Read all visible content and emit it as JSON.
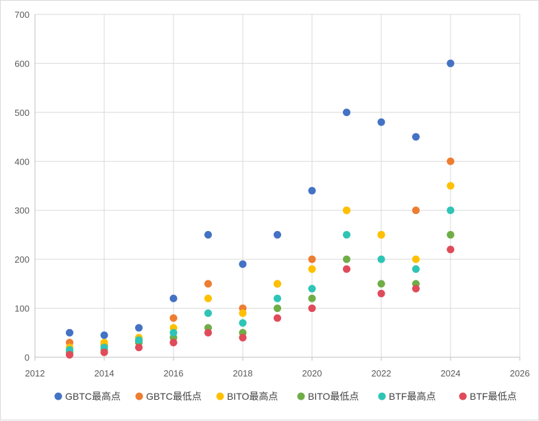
{
  "chart_data": {
    "type": "scatter",
    "title": "",
    "xlabel": "",
    "ylabel": "",
    "xlim": [
      2012,
      2026
    ],
    "ylim": [
      0,
      700
    ],
    "x_ticks": [
      2012,
      2014,
      2016,
      2018,
      2020,
      2022,
      2024,
      2026
    ],
    "y_ticks": [
      0,
      100,
      200,
      300,
      400,
      500,
      600,
      700
    ],
    "x_tick_labels": [
      "2012",
      "2014",
      "2016",
      "2018",
      "2020",
      "2022",
      "2024",
      "2026"
    ],
    "y_tick_labels": [
      "0",
      "100",
      "200",
      "300",
      "400",
      "500",
      "600",
      "700"
    ],
    "grid": true,
    "legend_position": "bottom",
    "x": [
      2013,
      2014,
      2015,
      2016,
      2017,
      2018,
      2019,
      2020,
      2021,
      2022,
      2023,
      2024
    ],
    "series": [
      {
        "name": "GBTC最高点",
        "color": "#4472C4",
        "values": [
          50,
          45,
          60,
          120,
          250,
          190,
          250,
          340,
          500,
          480,
          450,
          600
        ]
      },
      {
        "name": "GBTC最低点",
        "color": "#ED7D31",
        "values": [
          30,
          25,
          35,
          80,
          150,
          100,
          150,
          200,
          300,
          250,
          300,
          400
        ]
      },
      {
        "name": "BITO最高点",
        "color": "#FFC000",
        "values": [
          20,
          30,
          40,
          60,
          120,
          90,
          150,
          180,
          300,
          250,
          200,
          350
        ]
      },
      {
        "name": "BITO最低点",
        "color": "#70AD47",
        "values": [
          10,
          15,
          30,
          40,
          60,
          50,
          100,
          120,
          200,
          150,
          150,
          250
        ]
      },
      {
        "name": "BTF最高点",
        "color": "#2EC4B6",
        "values": [
          15,
          20,
          35,
          50,
          90,
          70,
          120,
          140,
          250,
          200,
          180,
          300
        ]
      },
      {
        "name": "BTF最低点",
        "color": "#E04B5A",
        "values": [
          5,
          10,
          20,
          30,
          50,
          40,
          80,
          100,
          180,
          130,
          140,
          220
        ]
      }
    ]
  }
}
